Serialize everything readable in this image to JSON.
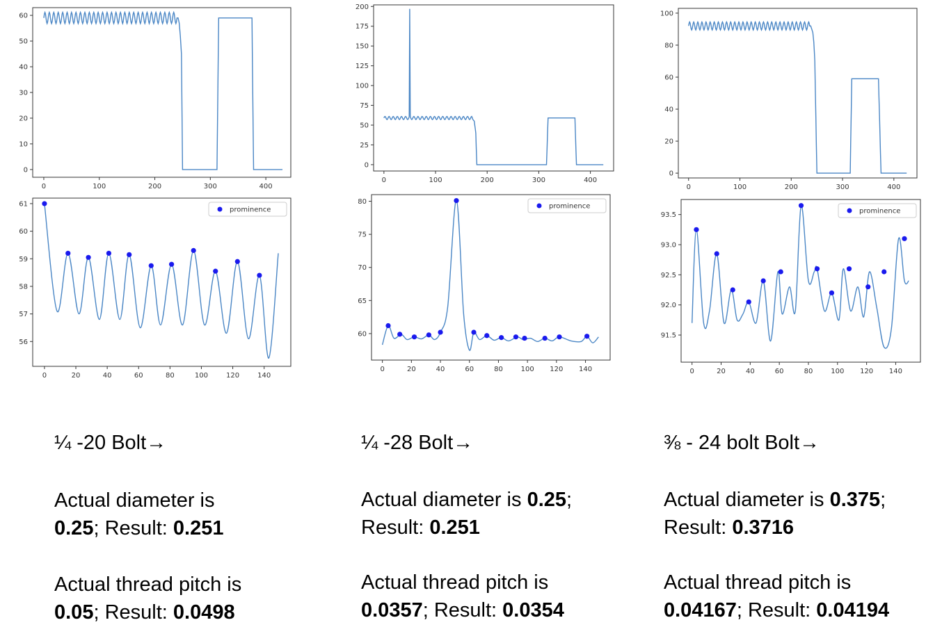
{
  "colors": {
    "line": "#4a86c5",
    "marker": "#1a1aee",
    "axes": "#333333"
  },
  "chart_data": [
    {
      "type": "line",
      "id": "c1-top",
      "xlim": [
        -20,
        445
      ],
      "ylim": [
        -3,
        63
      ],
      "xticks": [
        0,
        100,
        200,
        300,
        400
      ],
      "yticks": [
        0,
        10,
        20,
        30,
        40,
        50,
        60
      ],
      "series": [
        {
          "x": [
            0,
            242,
            244,
            246,
            248,
            250,
            312,
            315,
            375,
            378,
            430
          ],
          "y": [
            59,
            59,
            57,
            52,
            45,
            0,
            0,
            59,
            59,
            0,
            0
          ],
          "oscillation": {
            "from": 0,
            "to": 240,
            "period": 8,
            "amplitude": 2.2
          }
        }
      ]
    },
    {
      "type": "line",
      "id": "c2-top",
      "xlim": [
        -20,
        445
      ],
      "ylim": [
        -8,
        202
      ],
      "xticks": [
        0,
        100,
        200,
        300,
        400
      ],
      "yticks": [
        0,
        25,
        50,
        75,
        100,
        125,
        150,
        175,
        200
      ],
      "series": [
        {
          "x": [
            0,
            49,
            50,
            51,
            52,
            170,
            175,
            178,
            180,
            315,
            318,
            370,
            373,
            425
          ],
          "y": [
            59,
            59,
            195,
            60,
            59,
            59,
            55,
            40,
            0,
            0,
            59,
            59,
            0,
            0
          ],
          "oscillation": {
            "from": 0,
            "to": 172,
            "period": 8,
            "amplitude": 2
          }
        }
      ]
    },
    {
      "type": "line",
      "id": "c3-top",
      "xlim": [
        -20,
        445
      ],
      "ylim": [
        -3,
        103
      ],
      "xticks": [
        0,
        100,
        200,
        300,
        400
      ],
      "yticks": [
        0,
        20,
        40,
        60,
        80,
        100
      ],
      "series": [
        {
          "x": [
            0,
            238,
            242,
            244,
            246,
            250,
            315,
            318,
            370,
            375,
            425
          ],
          "y": [
            92,
            92,
            88,
            82,
            70,
            0,
            0,
            59,
            59,
            0,
            0
          ],
          "oscillation": {
            "from": 0,
            "to": 235,
            "period": 8,
            "amplitude": 2.5
          }
        }
      ]
    },
    {
      "type": "line",
      "id": "c1-bottom",
      "xlim": [
        -7.5,
        157
      ],
      "ylim": [
        55.1,
        61.2
      ],
      "xticks": [
        0,
        20,
        40,
        60,
        80,
        100,
        120,
        140
      ],
      "yticks": [
        56,
        57,
        58,
        59,
        60,
        61
      ],
      "legend": {
        "label": "prominence",
        "position": "top-right"
      },
      "series": [
        {
          "x": [
            0,
            8,
            15,
            22,
            28,
            35,
            41,
            48,
            54,
            61,
            68,
            74,
            81,
            88,
            95,
            102,
            109,
            116,
            123,
            130,
            137,
            143,
            149
          ],
          "y": [
            61,
            57.1,
            59.2,
            57,
            59.05,
            56.8,
            59.2,
            56.8,
            59.15,
            56.5,
            58.75,
            56.6,
            58.8,
            56.6,
            59.3,
            56.6,
            58.55,
            56.3,
            58.9,
            56.1,
            58.4,
            55.4,
            59.2
          ]
        }
      ],
      "peaks": {
        "x": [
          0,
          15,
          28,
          41,
          54,
          68,
          81,
          95,
          109,
          123,
          137
        ],
        "y": [
          61,
          59.2,
          59.05,
          59.2,
          59.15,
          58.75,
          58.8,
          59.3,
          58.55,
          58.9,
          58.4
        ]
      }
    },
    {
      "type": "line",
      "id": "c2-bottom",
      "xlim": [
        -7.5,
        157
      ],
      "ylim": [
        56,
        81
      ],
      "xticks": [
        0,
        20,
        40,
        60,
        80,
        100,
        120,
        140
      ],
      "yticks": [
        60,
        65,
        70,
        75,
        80
      ],
      "legend": {
        "label": "prominence",
        "position": "top-right"
      },
      "series": [
        {
          "x": [
            0,
            4,
            8,
            13,
            17,
            22,
            27,
            32,
            36,
            40,
            45,
            51,
            56,
            60,
            63,
            67,
            72,
            77,
            82,
            87,
            93,
            97,
            102,
            107,
            112,
            117,
            122,
            130,
            137,
            141,
            145,
            149
          ],
          "y": [
            58.3,
            61.2,
            59.3,
            59.9,
            59.1,
            59.5,
            59.2,
            59.8,
            59.1,
            60.2,
            64,
            80.2,
            63,
            57.5,
            60.2,
            59.1,
            59.7,
            59,
            59.4,
            58.9,
            59.5,
            59.1,
            59.3,
            58.8,
            59.3,
            58.9,
            59.5,
            58.9,
            58.8,
            59.6,
            58.6,
            59.5
          ]
        }
      ],
      "peaks": {
        "x": [
          4,
          12,
          22,
          32,
          40,
          51,
          63,
          72,
          82,
          92,
          98,
          112,
          122,
          141
        ],
        "y": [
          61.2,
          59.9,
          59.5,
          59.8,
          60.2,
          80.1,
          60.2,
          59.7,
          59.4,
          59.5,
          59.3,
          59.3,
          59.5,
          59.6
        ]
      }
    },
    {
      "type": "line",
      "id": "c3-bottom",
      "xlim": [
        -7.5,
        157
      ],
      "ylim": [
        91.05,
        93.75
      ],
      "xticks": [
        0,
        20,
        40,
        60,
        80,
        100,
        120,
        140
      ],
      "yticks": [
        91.5,
        92.0,
        92.5,
        93.0,
        93.5
      ],
      "legend": {
        "label": "prominence",
        "position": "top-right"
      },
      "series": [
        {
          "x": [
            0,
            3,
            8,
            12,
            17,
            22,
            27,
            31,
            35,
            39,
            44,
            49,
            54,
            59,
            62,
            67,
            71,
            75,
            80,
            84,
            86,
            91,
            96,
            101,
            104,
            109,
            114,
            118,
            122,
            127,
            132,
            137,
            142,
            146,
            149
          ],
          "y": [
            91.7,
            93.25,
            91.7,
            91.9,
            92.85,
            91.7,
            92.25,
            91.75,
            91.85,
            92.05,
            91.7,
            92.4,
            91.4,
            92.55,
            91.85,
            92.3,
            91.9,
            93.65,
            92.4,
            92.55,
            92.6,
            91.9,
            92.2,
            91.75,
            92.6,
            91.9,
            92.3,
            91.8,
            92.55,
            91.95,
            91.3,
            91.6,
            93.1,
            92.4,
            92.4
          ]
        }
      ],
      "peaks": {
        "x": [
          3,
          17,
          28,
          39,
          49,
          61,
          75,
          86,
          96,
          108,
          121,
          132,
          146
        ],
        "y": [
          93.25,
          92.85,
          92.25,
          92.05,
          92.4,
          92.55,
          93.65,
          92.6,
          92.2,
          92.6,
          92.3,
          92.55,
          93.1
        ]
      }
    }
  ],
  "captions": [
    {
      "title": "¼ -20 Bolt→",
      "diameter_label": "Actual diameter is",
      "diameter_actual": "0.25",
      "sep1": "; Result: ",
      "diameter_result": "0.251",
      "pitch_label": "Actual thread pitch is",
      "pitch_actual": "0.05",
      "sep2": "; Result: ",
      "pitch_result": "0.0498"
    },
    {
      "title": "¼ -28 Bolt→",
      "diameter_label": "Actual diameter is",
      "diameter_actual": "0.25",
      "sep1": ";",
      "result_label": "Result: ",
      "diameter_result": "0.251",
      "pitch_label": "Actual thread pitch is",
      "pitch_actual": "0.0357",
      "sep2": "; Result: ",
      "pitch_result": "0.0354"
    },
    {
      "title": "⅜ - 24 bolt Bolt→",
      "diameter_label": "Actual diameter is",
      "diameter_actual": "0.375",
      "sep1": ";",
      "result_label": "Result: ",
      "diameter_result": "0.3716",
      "pitch_label": "Actual thread pitch is",
      "pitch_actual": "0.04167",
      "sep2": "; Result: ",
      "pitch_result": "0.04194"
    }
  ]
}
